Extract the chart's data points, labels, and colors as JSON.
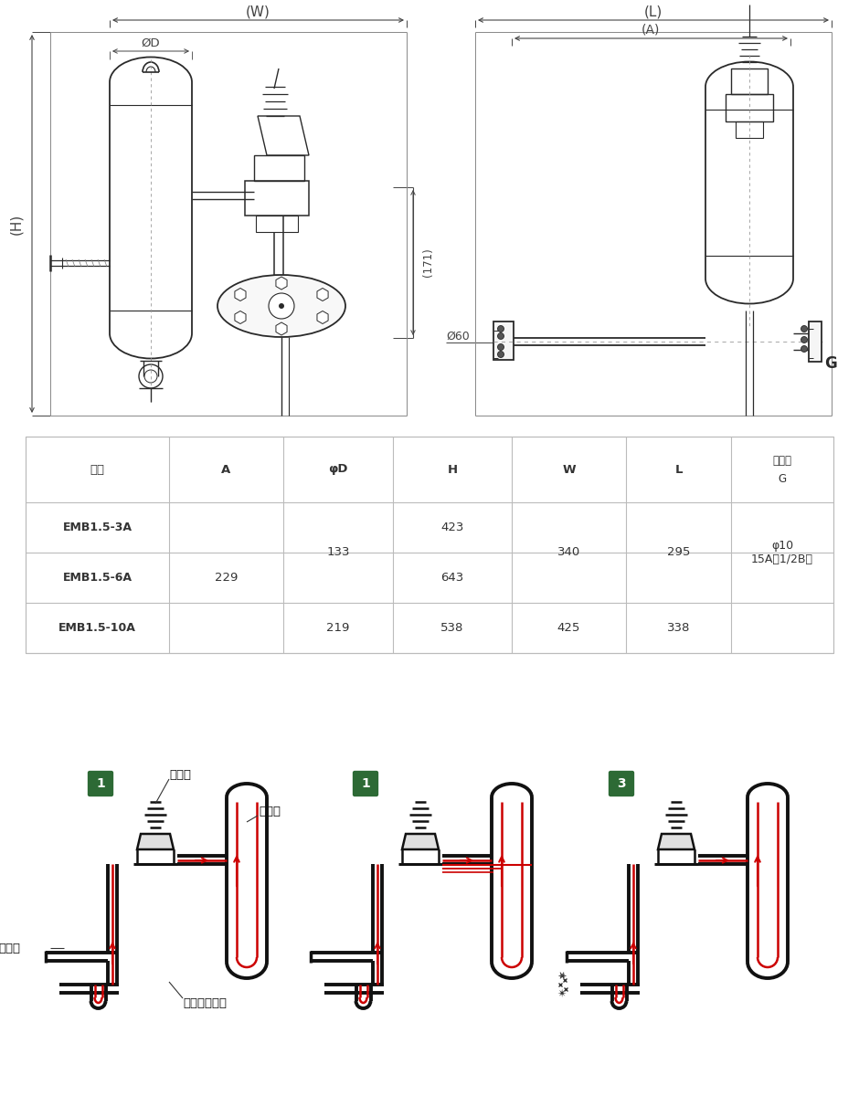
{
  "bg_color": "#ffffff",
  "line_color": "#2a2a2a",
  "dim_color": "#444444",
  "table_border_color": "#bbbbbb",
  "green_badge_color": "#2d6a35",
  "red_flow_color": "#cc0000",
  "table_header": [
    "型式",
    "A",
    "φD",
    "H",
    "W",
    "L",
    "給気口\nG"
  ],
  "table_rows_model": [
    "EMB1.5-3A",
    "EMB1.5-6A",
    "EMB1.5-10A"
  ],
  "table_data": {
    "EMB1.5-3A": {
      "A": "",
      "phiD": "",
      "H": "423",
      "W": "",
      "L": ""
    },
    "EMB1.5-6A": {
      "A": "229",
      "phiD": "",
      "H": "643",
      "W": "",
      "L": ""
    },
    "EMB1.5-10A": {
      "A": "",
      "phiD": "219",
      "H": "538",
      "W": "425",
      "L": "338"
    }
  },
  "merged_phiD": "133",
  "merged_W": "340",
  "merged_L": "295",
  "merged_G": "φ10\n15A（1/2B）",
  "label_denjibin": "電磁弁",
  "label_tank": "タンク",
  "label_toide": "吹出口",
  "label_diaphragm": "ダイヤフラム"
}
